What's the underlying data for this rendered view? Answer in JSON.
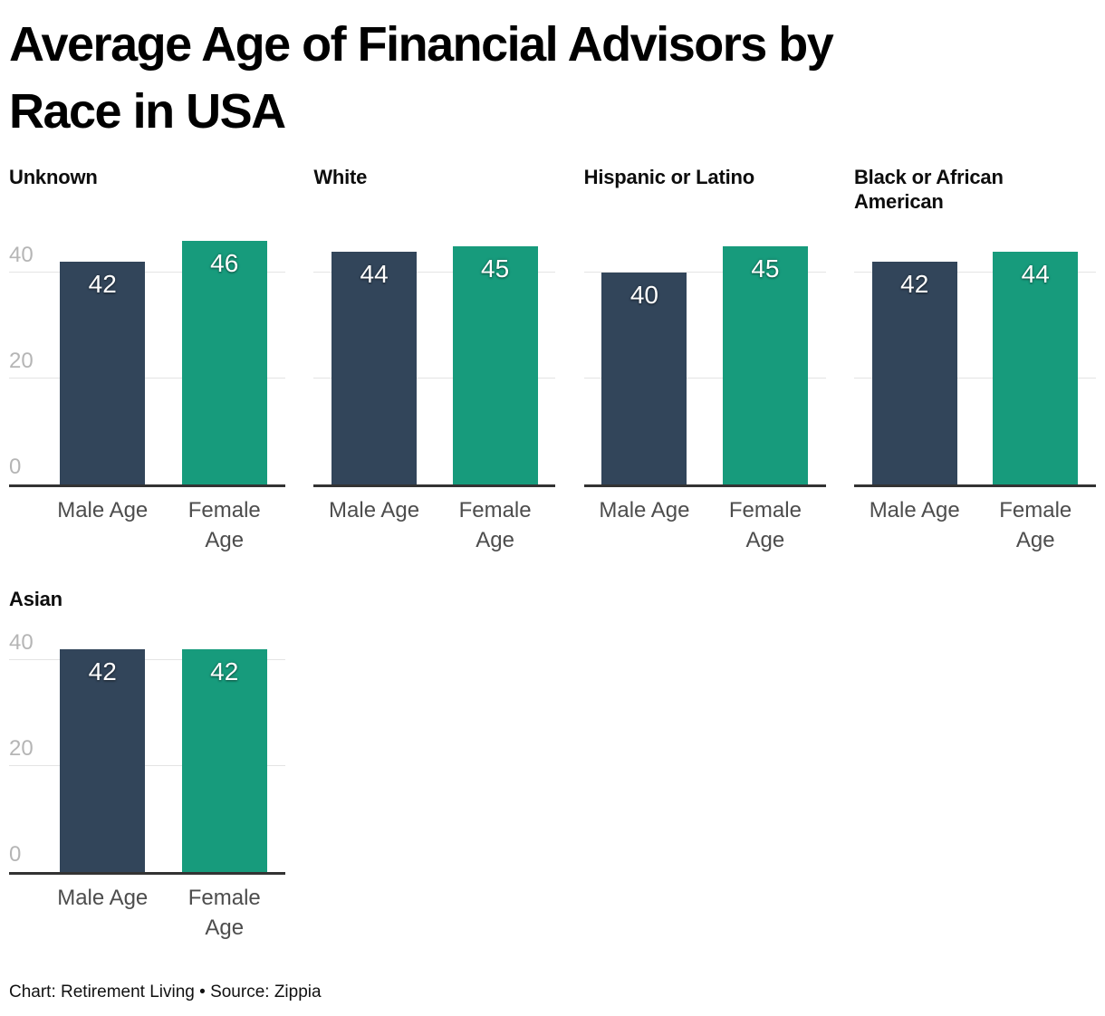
{
  "page": {
    "title": "Average Age of Financial Advisors by Race in USA",
    "title_lines": [
      "Average Age of Financial Advisors by",
      "Race in USA"
    ],
    "footer": "Chart: Retirement Living • Source: Zippia"
  },
  "colors": {
    "male_bar": "#32455a",
    "female_bar": "#179b7c",
    "gridline": "#e4e4e4",
    "axis_line": "#333333",
    "tick_label": "#b5b5b5",
    "category_label": "#4d4d4d"
  },
  "chart_data": {
    "type": "bar",
    "title": "Average Age of Financial Advisors by Race in USA",
    "categories": [
      "Male Age",
      "Female Age"
    ],
    "categories_display": [
      "Male Age",
      "Female\nAge"
    ],
    "series": [
      {
        "name": "Male Age",
        "color": "#32455a"
      },
      {
        "name": "Female Age",
        "color": "#179b7c"
      }
    ],
    "facets": [
      {
        "label": "Unknown",
        "values": [
          42,
          46
        ],
        "show_y_axis": true,
        "row": 0
      },
      {
        "label": "White",
        "values": [
          44,
          45
        ],
        "show_y_axis": false,
        "row": 0
      },
      {
        "label": "Hispanic or Latino",
        "values": [
          40,
          45
        ],
        "show_y_axis": false,
        "row": 0
      },
      {
        "label": "Black or African American",
        "values": [
          42,
          44
        ],
        "show_y_axis": false,
        "row": 0
      },
      {
        "label": "Asian",
        "values": [
          42,
          42
        ],
        "show_y_axis": true,
        "row": 1
      }
    ],
    "xlabel": "",
    "ylabel": "",
    "yticks": [
      0,
      20,
      40
    ],
    "ylim": [
      0,
      51
    ],
    "grid": true,
    "value_labels": true,
    "legend": "none",
    "source": "Chart: Retirement Living • Source: Zippia"
  }
}
